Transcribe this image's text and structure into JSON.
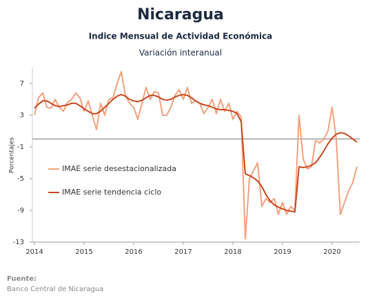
{
  "chart_data": {
    "type": "line",
    "title": "Nicaragua",
    "subtitle": "Indice Mensual de  Actividad Económica",
    "subtitle2": "Variación interanual",
    "y_label": "Porcentajes",
    "source_label": "Fuente:",
    "source": "Banco Central de Nicaragua",
    "categories": [
      "2014",
      null,
      null,
      null,
      null,
      null,
      null,
      null,
      null,
      null,
      null,
      null,
      "2015",
      null,
      null,
      null,
      null,
      null,
      null,
      null,
      null,
      null,
      null,
      null,
      "2016",
      null,
      null,
      null,
      null,
      null,
      null,
      null,
      null,
      null,
      null,
      null,
      "2017",
      null,
      null,
      null,
      null,
      null,
      null,
      null,
      null,
      null,
      null,
      null,
      "2018",
      null,
      null,
      null,
      null,
      null,
      null,
      null,
      null,
      null,
      null,
      null,
      "2019",
      null,
      null,
      null,
      null,
      null,
      null,
      null,
      null,
      null,
      null,
      null,
      "2020",
      null,
      null,
      null,
      null,
      null,
      null
    ],
    "ylim": [
      -13,
      9
    ],
    "yticks": [
      -13,
      -9,
      -5,
      -1,
      3,
      7
    ],
    "hline": 0,
    "series": [
      {
        "name": "IMAE serie desestacionalizada",
        "color": "#f4a07c",
        "width": 2,
        "values": [
          3.0,
          5.2,
          5.8,
          4.0,
          3.9,
          5.0,
          4.0,
          3.5,
          4.6,
          5.0,
          5.8,
          5.2,
          3.5,
          4.8,
          3.0,
          1.2,
          4.5,
          3.0,
          5.0,
          5.2,
          7.0,
          8.5,
          5.5,
          4.5,
          4.0,
          2.5,
          4.5,
          6.5,
          5.0,
          6.0,
          5.8,
          3.0,
          3.0,
          4.0,
          5.5,
          6.2,
          5.0,
          6.5,
          4.5,
          4.8,
          4.5,
          3.2,
          4.0,
          5.0,
          3.2,
          5.0,
          3.5,
          4.5,
          2.5,
          3.5,
          2.8,
          -12.6,
          -5.0,
          -4.0,
          -3.0,
          -8.5,
          -7.5,
          -8.0,
          -7.5,
          -9.5,
          -8.0,
          -9.5,
          -8.5,
          -9.0,
          3.0,
          -2.5,
          -3.8,
          -3.5,
          -0.2,
          -0.5,
          0.0,
          1.0,
          4.0,
          0.0,
          -9.5,
          -8.0,
          -6.5,
          -5.5,
          -3.5
        ]
      },
      {
        "name": "IMAE serie  tendencia ciclo",
        "color": "#c8461c",
        "width": 2,
        "values": [
          3.9,
          4.4,
          4.8,
          4.8,
          4.5,
          4.2,
          4.1,
          4.2,
          4.3,
          4.5,
          4.5,
          4.2,
          3.8,
          3.5,
          3.2,
          3.2,
          3.5,
          4.0,
          4.5,
          5.0,
          5.4,
          5.6,
          5.4,
          5.0,
          4.8,
          4.7,
          4.9,
          5.2,
          5.5,
          5.5,
          5.3,
          5.0,
          4.9,
          5.0,
          5.3,
          5.5,
          5.6,
          5.5,
          5.2,
          4.8,
          4.5,
          4.3,
          4.2,
          4.0,
          3.8,
          3.7,
          3.7,
          3.6,
          3.5,
          3.2,
          2.2,
          -4.4,
          -4.6,
          -4.9,
          -5.3,
          -6.0,
          -7.0,
          -7.8,
          -8.3,
          -8.6,
          -8.8,
          -9.0,
          -9.1,
          -9.2,
          -3.5,
          -3.6,
          -3.5,
          -3.3,
          -3.0,
          -2.3,
          -1.5,
          -0.6,
          0.1,
          0.6,
          0.8,
          0.7,
          0.4,
          0.0,
          -0.4
        ]
      }
    ]
  }
}
